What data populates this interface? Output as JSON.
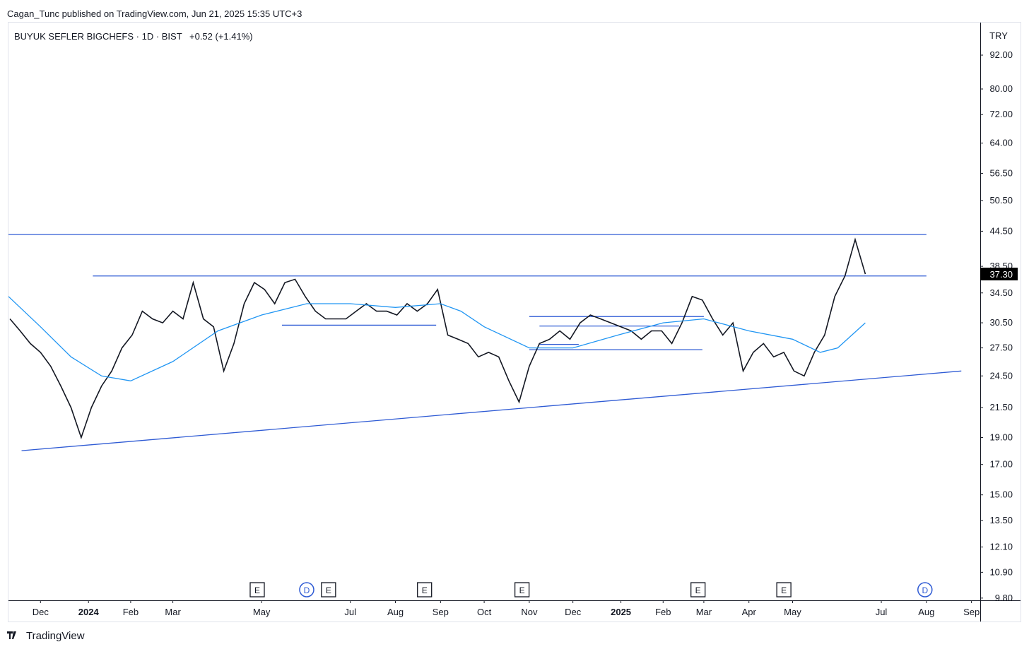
{
  "header": {
    "published": "Cagan_Tunc published on TradingView.com, Jun 21, 2025 15:35 UTC+3"
  },
  "footer": {
    "brand": "TradingView"
  },
  "chart_data": {
    "type": "line",
    "symbol": "BUYUK SEFLER BIGCHEFS · 1D · BIST",
    "change": "+0.52 (+1.41%)",
    "currency": "TRY",
    "log_scale": true,
    "xlim": [
      "2023-11-09",
      "2025-09-07"
    ],
    "ylim": [
      9.71,
      105.2
    ],
    "yticks": [
      {
        "value": 9.8,
        "label": "9.80"
      },
      {
        "value": 10.9,
        "label": "10.90"
      },
      {
        "value": 12.1,
        "label": "12.10"
      },
      {
        "value": 13.5,
        "label": "13.50"
      },
      {
        "value": 15,
        "label": "15.00"
      },
      {
        "value": 17,
        "label": "17.00"
      },
      {
        "value": 19,
        "label": "19.00"
      },
      {
        "value": 21.5,
        "label": "21.50"
      },
      {
        "value": 24.5,
        "label": "24.50"
      },
      {
        "value": 27.5,
        "label": "27.50"
      },
      {
        "value": 30.5,
        "label": "30.50"
      },
      {
        "value": 34.5,
        "label": "34.50"
      },
      {
        "value": 38.5,
        "label": "38.50"
      },
      {
        "value": 44.5,
        "label": "44.50"
      },
      {
        "value": 50.5,
        "label": "50.50"
      },
      {
        "value": 56.5,
        "label": "56.50"
      },
      {
        "value": 64,
        "label": "64.00"
      },
      {
        "value": 72,
        "label": "72.00"
      },
      {
        "value": 80,
        "label": "80.00"
      },
      {
        "value": 92,
        "label": "92.00"
      }
    ],
    "xticks": [
      {
        "value": "2023-12-01",
        "label": "Dec"
      },
      {
        "value": "2024-01-03",
        "label": "2024"
      },
      {
        "value": "2024-02-01",
        "label": "Feb"
      },
      {
        "value": "2024-03-01",
        "label": "Mar"
      },
      {
        "value": "2024-05-01",
        "label": "May"
      },
      {
        "value": "2024-07-01",
        "label": "Jul"
      },
      {
        "value": "2024-08-01",
        "label": "Aug"
      },
      {
        "value": "2024-09-01",
        "label": "Sep"
      },
      {
        "value": "2024-10-01",
        "label": "Oct"
      },
      {
        "value": "2024-11-01",
        "label": "Nov"
      },
      {
        "value": "2024-12-01",
        "label": "Dec"
      },
      {
        "value": "2025-01-03",
        "label": "2025"
      },
      {
        "value": "2025-02-01",
        "label": "Feb"
      },
      {
        "value": "2025-03-01",
        "label": "Mar"
      },
      {
        "value": "2025-04-01",
        "label": "Apr"
      },
      {
        "value": "2025-05-01",
        "label": "May"
      },
      {
        "value": "2025-07-01",
        "label": "Jul"
      },
      {
        "value": "2025-08-01",
        "label": "Aug"
      },
      {
        "value": "2025-09-01",
        "label": "Sep"
      }
    ],
    "last_price": {
      "value": 37.3,
      "label": "37.30"
    },
    "series": [
      {
        "color": "#131722",
        "x": [
          "2023-11-10",
          "2023-11-17",
          "2023-11-24",
          "2023-12-01",
          "2023-12-08",
          "2023-12-15",
          "2023-12-22",
          "2023-12-29",
          "2024-01-05",
          "2024-01-12",
          "2024-01-19",
          "2024-01-26",
          "2024-02-02",
          "2024-02-09",
          "2024-02-16",
          "2024-02-23",
          "2024-03-01",
          "2024-03-08",
          "2024-03-15",
          "2024-03-22",
          "2024-03-29",
          "2024-04-05",
          "2024-04-12",
          "2024-04-19",
          "2024-04-26",
          "2024-05-03",
          "2024-05-10",
          "2024-05-17",
          "2024-05-24",
          "2024-05-31",
          "2024-06-07",
          "2024-06-14",
          "2024-06-21",
          "2024-06-28",
          "2024-07-05",
          "2024-07-12",
          "2024-07-19",
          "2024-07-26",
          "2024-08-02",
          "2024-08-09",
          "2024-08-16",
          "2024-08-23",
          "2024-08-30",
          "2024-09-06",
          "2024-09-13",
          "2024-09-20",
          "2024-09-27",
          "2024-10-04",
          "2024-10-11",
          "2024-10-18",
          "2024-10-25",
          "2024-11-01",
          "2024-11-08",
          "2024-11-15",
          "2024-11-22",
          "2024-11-29",
          "2024-12-06",
          "2024-12-13",
          "2024-12-20",
          "2024-12-27",
          "2025-01-03",
          "2025-01-10",
          "2025-01-17",
          "2025-01-24",
          "2025-01-31",
          "2025-02-07",
          "2025-02-14",
          "2025-02-21",
          "2025-02-28",
          "2025-03-07",
          "2025-03-14",
          "2025-03-21",
          "2025-03-28",
          "2025-04-04",
          "2025-04-11",
          "2025-04-18",
          "2025-04-25",
          "2025-05-02",
          "2025-05-09",
          "2025-05-16",
          "2025-05-23",
          "2025-05-30",
          "2025-06-06",
          "2025-06-13",
          "2025-06-20"
        ],
        "values": [
          31,
          29.5,
          28,
          27,
          25.5,
          23.5,
          21.5,
          19,
          21.5,
          23.5,
          25,
          27.5,
          29,
          32,
          31,
          30.5,
          32,
          31,
          36,
          31,
          30,
          25,
          28,
          33,
          36,
          35,
          33,
          36,
          36.5,
          34,
          32,
          31,
          31,
          31,
          32,
          33,
          32,
          32,
          31.5,
          33,
          32,
          33,
          35,
          29,
          28.5,
          28,
          26.5,
          27,
          26.5,
          24,
          22,
          25.5,
          28,
          28.5,
          29.5,
          28.5,
          30.5,
          31.5,
          31,
          30.5,
          30,
          29.5,
          28.5,
          29.5,
          29.5,
          28,
          30.5,
          34,
          33.5,
          31,
          29,
          30.5,
          25,
          27,
          28,
          26.5,
          27,
          25,
          24.5,
          27,
          29,
          34,
          37,
          43,
          37.3
        ]
      },
      {
        "color": "#2196f3",
        "x": [
          "2023-11-09",
          "2023-12-01",
          "2023-12-22",
          "2024-01-12",
          "2024-02-01",
          "2024-03-01",
          "2024-04-01",
          "2024-05-01",
          "2024-06-01",
          "2024-07-01",
          "2024-08-01",
          "2024-09-01",
          "2024-09-15",
          "2024-10-01",
          "2024-11-01",
          "2024-12-01",
          "2025-01-01",
          "2025-02-01",
          "2025-03-01",
          "2025-04-01",
          "2025-05-01",
          "2025-05-20",
          "2025-06-01",
          "2025-06-20"
        ],
        "values": [
          34,
          30,
          26.5,
          24.5,
          24,
          26,
          29.5,
          31.5,
          33,
          33,
          32.5,
          33,
          32,
          30,
          27.5,
          27.5,
          29,
          30.5,
          31,
          29.5,
          28.5,
          27,
          27.5,
          30.5
        ]
      }
    ],
    "lines": [
      {
        "x": [
          "2023-11-09",
          "2025-08-01"
        ],
        "y": [
          43.9,
          43.9
        ]
      },
      {
        "x": [
          "2024-01-06",
          "2025-08-01"
        ],
        "y": [
          37,
          37
        ]
      },
      {
        "x": [
          "2024-05-15",
          "2024-08-29"
        ],
        "y": [
          30.2,
          30.2
        ]
      },
      {
        "x": [
          "2024-11-01",
          "2025-03-01"
        ],
        "y": [
          31.3,
          31.3
        ]
      },
      {
        "x": [
          "2024-11-08",
          "2025-02-12"
        ],
        "y": [
          30.1,
          30.1
        ]
      },
      {
        "x": [
          "2024-11-08",
          "2024-12-05"
        ],
        "y": [
          27.9,
          27.9
        ]
      },
      {
        "x": [
          "2024-11-01",
          "2025-02-28"
        ],
        "y": [
          27.3,
          27.3
        ]
      },
      {
        "x": [
          "2023-11-18",
          "2025-08-25"
        ],
        "y": [
          18,
          25
        ]
      }
    ],
    "events": [
      {
        "date": "2024-04-28",
        "label": "E"
      },
      {
        "date": "2024-06-01",
        "label": "D"
      },
      {
        "date": "2024-06-16",
        "label": "E"
      },
      {
        "date": "2024-08-21",
        "label": "E"
      },
      {
        "date": "2024-10-27",
        "label": "E"
      },
      {
        "date": "2025-02-25",
        "label": "E"
      },
      {
        "date": "2025-04-25",
        "label": "E"
      },
      {
        "date": "2025-07-31",
        "label": "D"
      }
    ]
  }
}
